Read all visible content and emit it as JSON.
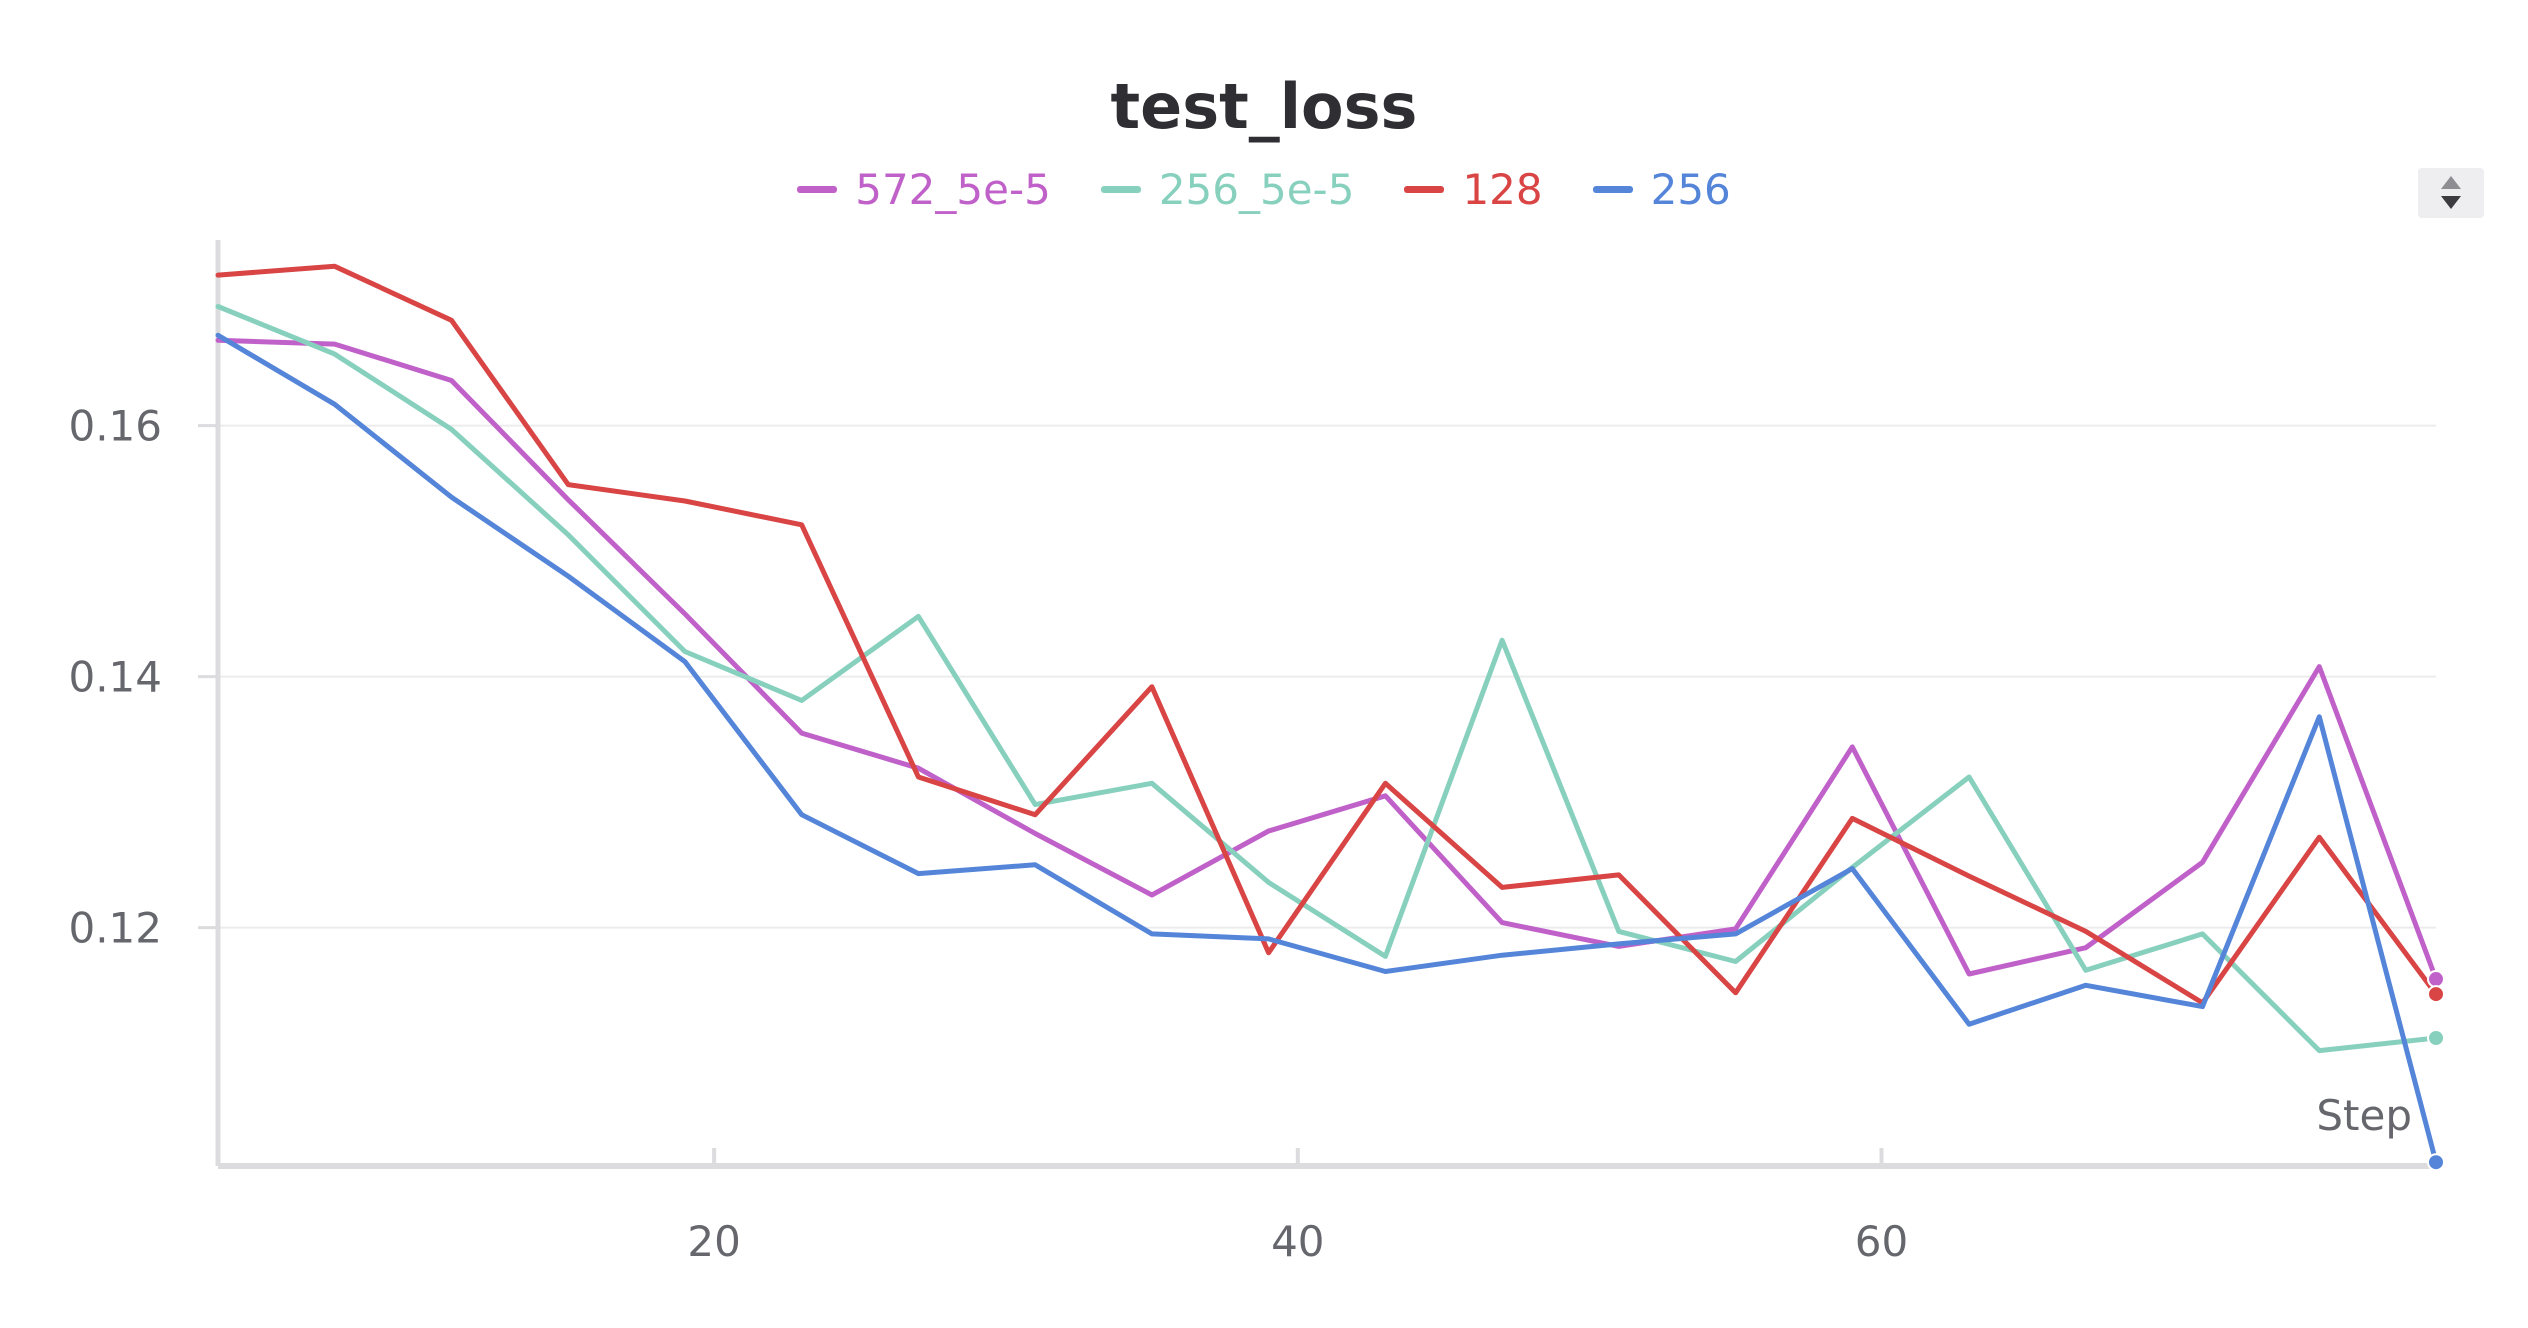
{
  "chart_data": {
    "type": "line",
    "title": "test_loss",
    "xlabel": "Step",
    "ylabel": "",
    "xlim": [
      3,
      79
    ],
    "ylim": [
      0.101,
      0.174
    ],
    "x_ticks": [
      20,
      40,
      60
    ],
    "y_ticks": [
      0.12,
      0.14,
      0.16
    ],
    "y_tick_labels": [
      "0.12",
      "0.14",
      "0.16"
    ],
    "x_tick_labels": [
      "20",
      "40",
      "60"
    ],
    "grid": true,
    "legend_position": "top-center",
    "x": [
      3,
      7,
      11,
      15,
      19,
      23,
      27,
      31,
      35,
      39,
      43,
      47,
      51,
      55,
      59,
      63,
      67,
      71,
      75,
      79
    ],
    "series": [
      {
        "name": "572_5e-5",
        "color": "#c061c9",
        "values": [
          0.1668,
          0.1665,
          0.1636,
          0.1541,
          0.145,
          0.1355,
          0.1327,
          0.1275,
          0.1226,
          0.1277,
          0.1305,
          0.1204,
          0.1185,
          0.1199,
          0.1344,
          0.1163,
          0.1184,
          0.1252,
          0.1408,
          0.1159
        ]
      },
      {
        "name": "256_5e-5",
        "color": "#87d0bd",
        "values": [
          0.1695,
          0.1657,
          0.1597,
          0.1513,
          0.142,
          0.1381,
          0.1448,
          0.1298,
          0.1315,
          0.1236,
          0.1177,
          0.1429,
          0.1197,
          0.1173,
          0.1248,
          0.132,
          0.1166,
          0.1195,
          0.1102,
          0.1112
        ]
      },
      {
        "name": "128",
        "color": "#d94444",
        "values": [
          0.172,
          0.1727,
          0.1684,
          0.1553,
          0.154,
          0.1521,
          0.132,
          0.129,
          0.1392,
          0.118,
          0.1315,
          0.1232,
          0.1242,
          0.1148,
          0.1287,
          0.1241,
          0.1197,
          0.114,
          0.1272,
          0.1147
        ]
      },
      {
        "name": "256",
        "color": "#5485d9",
        "values": [
          0.1672,
          0.1617,
          0.1543,
          0.148,
          0.1412,
          0.129,
          0.1243,
          0.125,
          0.1195,
          0.1191,
          0.1165,
          0.1178,
          0.1187,
          0.1195,
          0.1247,
          0.1123,
          0.1154,
          0.1137,
          0.1368,
          0.1013
        ]
      }
    ]
  },
  "colors": {
    "axis": "#dcdcde",
    "grid": "#ececee",
    "tick_text": "#66666d",
    "title_text": "#2f2f33"
  }
}
